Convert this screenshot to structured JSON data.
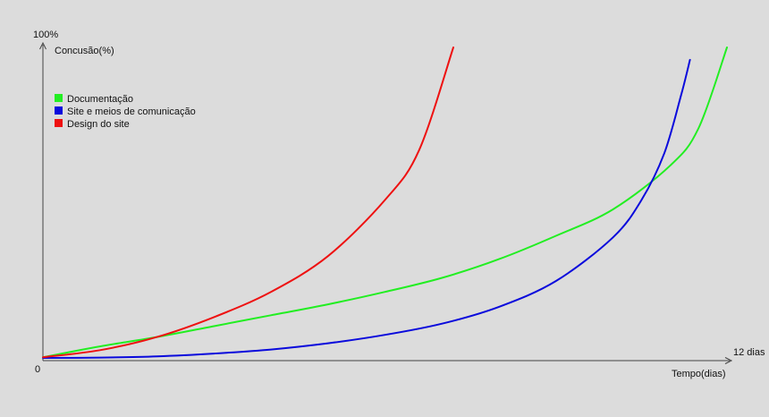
{
  "chart_data": {
    "type": "line",
    "title": "",
    "xlabel": "Tempo(dias)",
    "ylabel": "Concusão(%)",
    "x_origin_label": "0",
    "x_max_label": "12 dias",
    "y_max_label": "100%",
    "xlim": [
      0,
      12
    ],
    "ylim": [
      0,
      100
    ],
    "grid": false,
    "legend_position": "top-left",
    "series": [
      {
        "name": "Documentação",
        "color": "#22ee22",
        "x": [
          0,
          1,
          2,
          3,
          4,
          5,
          6,
          7,
          8,
          9,
          10,
          11,
          11.5,
          12
        ],
        "y": [
          0.5,
          4,
          7,
          10.5,
          14,
          17.5,
          21.5,
          26,
          32,
          39.5,
          48,
          62,
          74,
          100
        ]
      },
      {
        "name": "Site e meios de comunicação",
        "color": "#0a0adc",
        "x": [
          0,
          1,
          2,
          3,
          4,
          5,
          6,
          7,
          8,
          9,
          10,
          10.5,
          10.9,
          11.2,
          11.35
        ],
        "y": [
          0.3,
          0.4,
          0.8,
          1.7,
          3,
          5,
          7.7,
          11.3,
          16.7,
          25,
          39,
          51,
          66,
          85,
          96
        ]
      },
      {
        "name": "Design do site",
        "color": "#ee1111",
        "x": [
          0,
          1,
          2,
          3,
          4,
          5,
          6,
          6.6,
          7.2
        ],
        "y": [
          0.5,
          2.8,
          7,
          13.4,
          21.5,
          33,
          51,
          67,
          100
        ]
      }
    ]
  }
}
